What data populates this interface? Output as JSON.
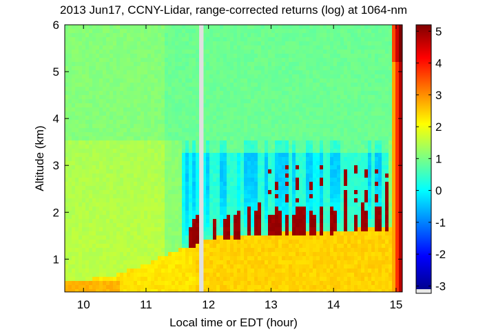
{
  "chart_data": {
    "type": "heatmap",
    "title": "2013 Jun17, CCNY-Lidar, range-corrected returns (log) at 1064-nm",
    "xlabel": "Local time or EDT (hour)",
    "ylabel": "Altitude (km)",
    "xlim": [
      9.7,
      15.1
    ],
    "ylim": [
      0.3,
      6.0
    ],
    "x_ticks": [
      10,
      11,
      12,
      13,
      14,
      15
    ],
    "x_tick_labels": [
      "10",
      "11",
      "12",
      "13",
      "14",
      "15"
    ],
    "y_ticks": [
      1,
      2,
      3,
      4,
      5,
      6
    ],
    "y_tick_labels": [
      "1",
      "2",
      "3",
      "4",
      "5",
      "6"
    ],
    "colorbar": {
      "colormap": "jet",
      "range": [
        -3.1,
        5.2
      ],
      "ticks": [
        -3,
        -2,
        -1,
        0,
        1,
        2,
        3,
        4,
        5
      ],
      "tick_labels": [
        "-3",
        "-2",
        "-1",
        "0",
        "1",
        "2",
        "3",
        "4",
        "5"
      ]
    },
    "data_gap": [
      11.85,
      11.92
    ],
    "features": {
      "boundary_layer_top_km": [
        [
          9.7,
          0.5
        ],
        [
          10.5,
          0.65
        ],
        [
          11.0,
          0.9
        ],
        [
          11.5,
          1.2
        ],
        [
          12.0,
          1.45
        ],
        [
          13.0,
          1.55
        ],
        [
          14.0,
          1.6
        ],
        [
          15.0,
          1.7
        ]
      ],
      "cloud_time_hours": [
        11.75,
        11.8,
        12.1,
        12.3,
        12.45,
        12.65,
        12.8,
        13.0,
        13.1,
        13.25,
        13.4,
        13.5,
        13.65,
        13.8,
        14.0,
        14.2,
        14.35,
        14.5,
        14.7,
        14.85
      ]
    }
  }
}
